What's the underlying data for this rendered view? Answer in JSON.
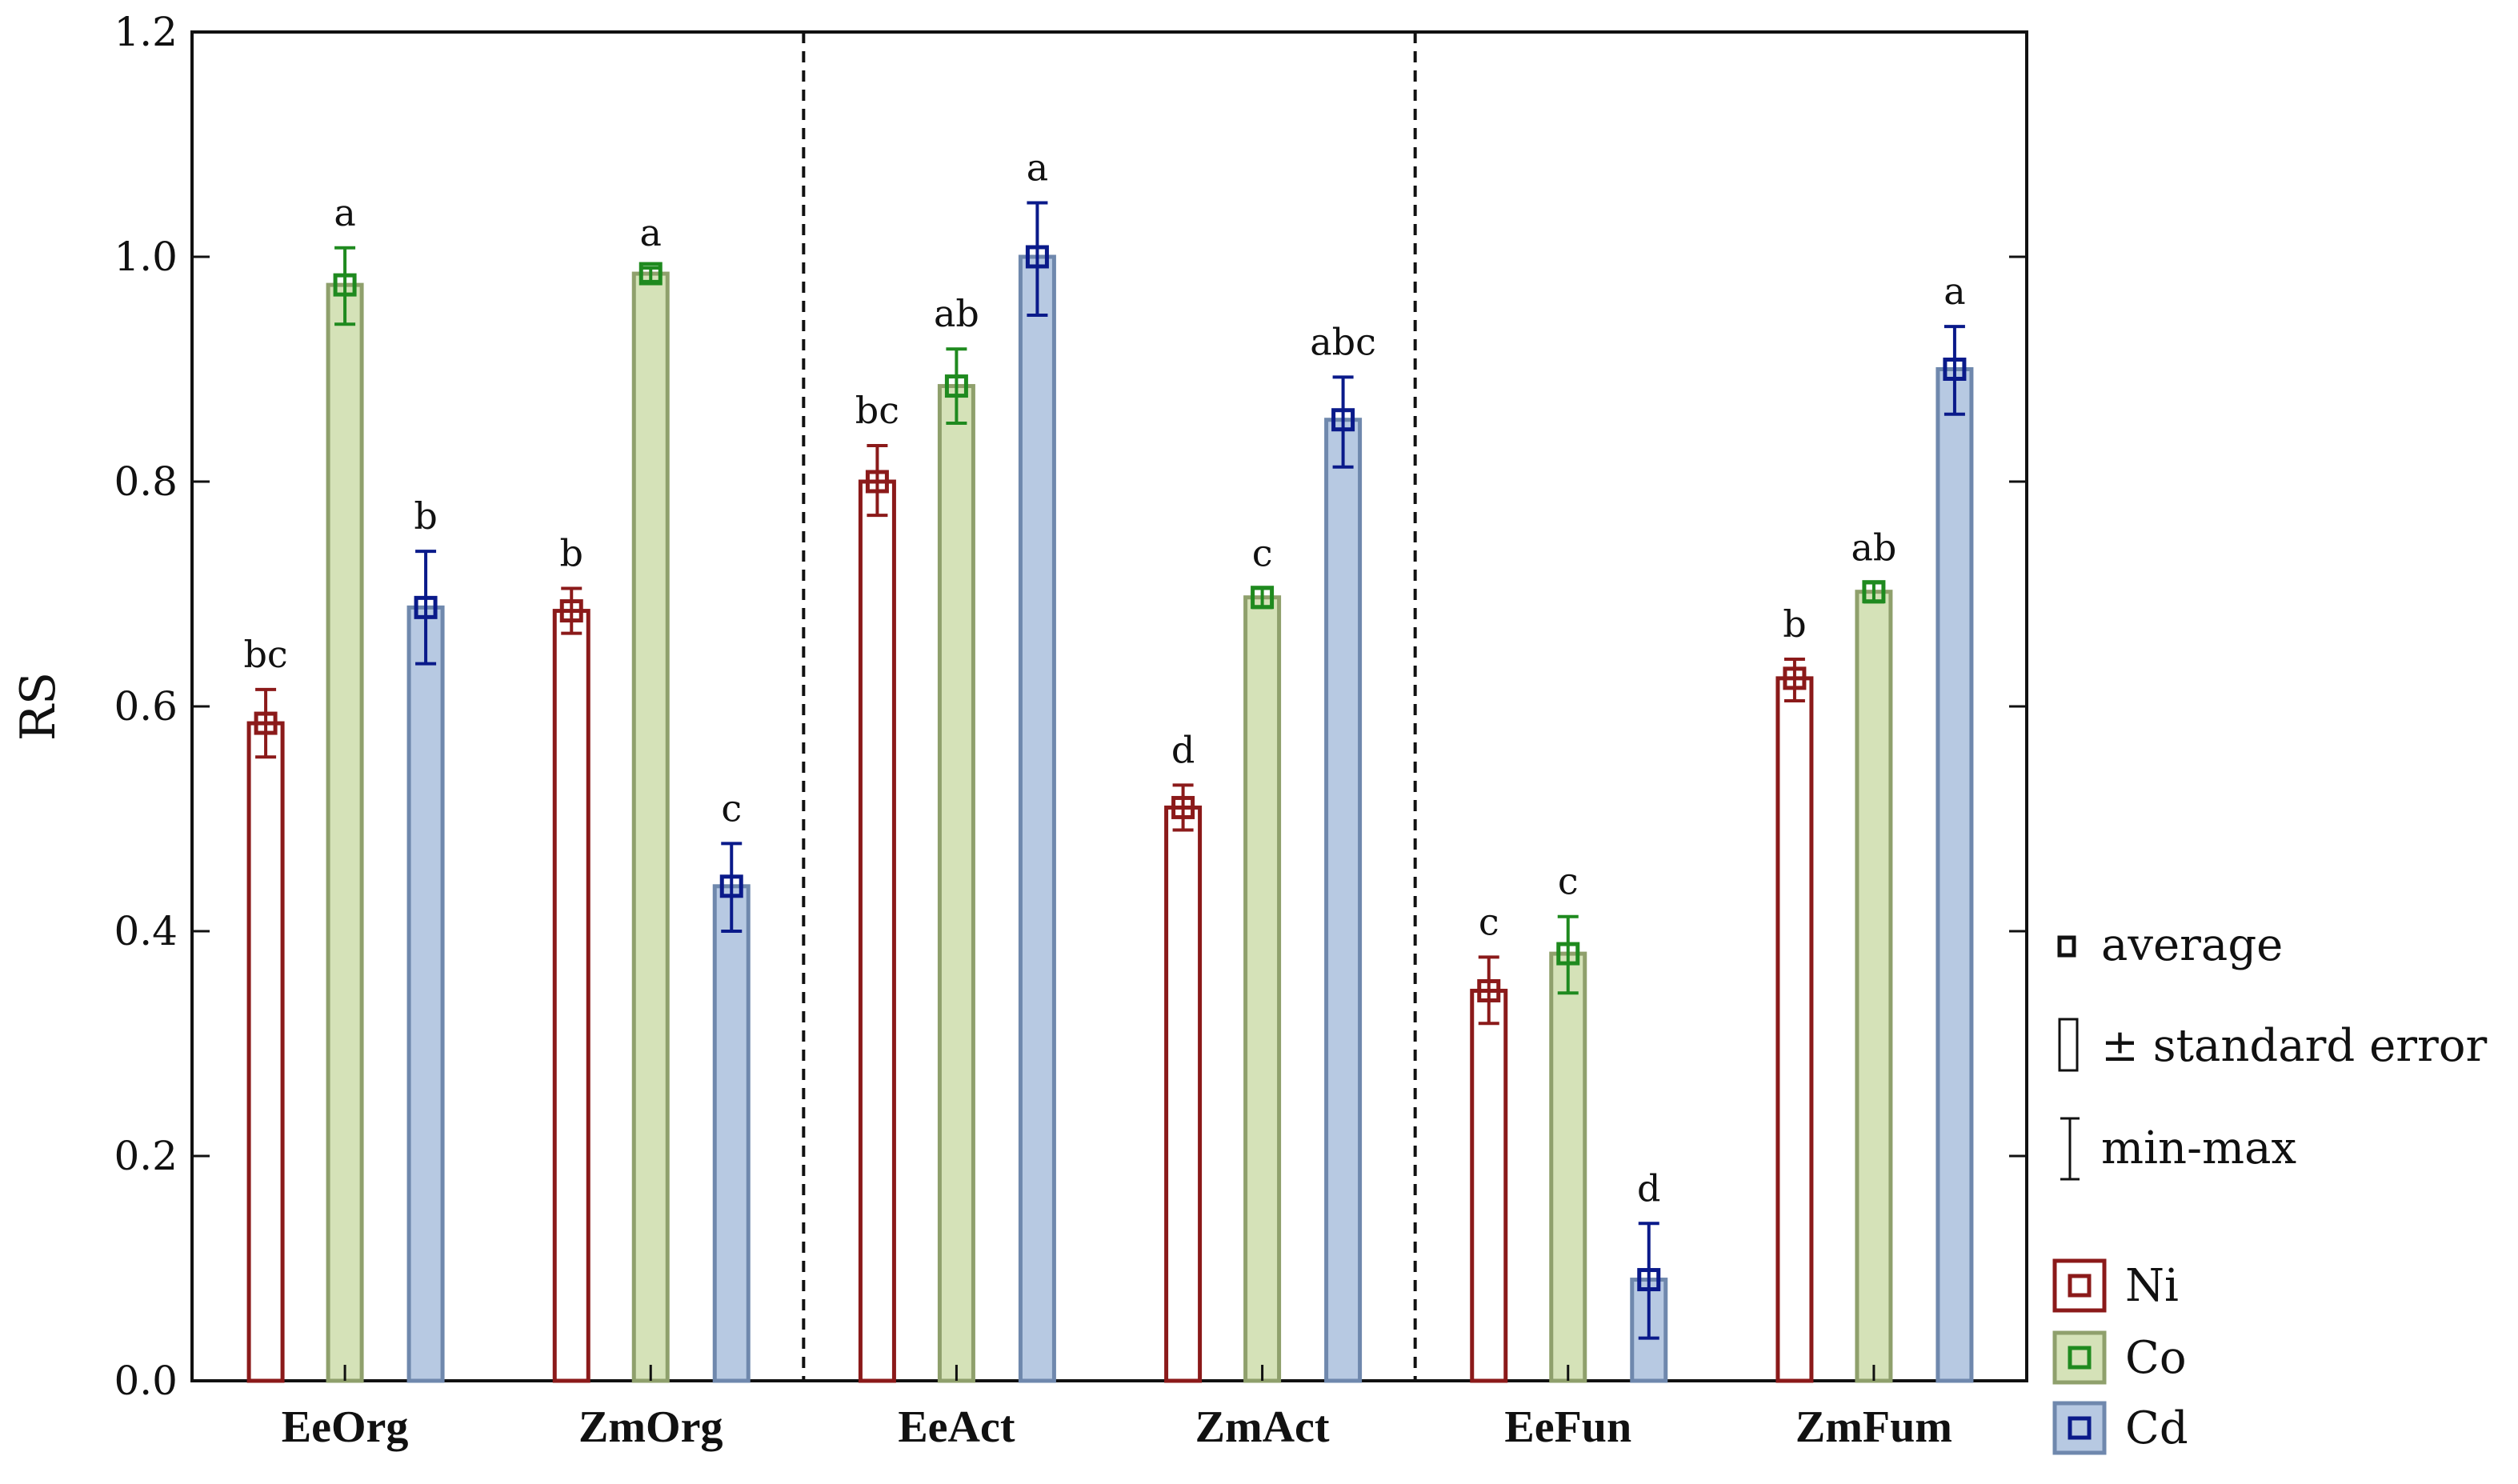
{
  "chart_data": {
    "type": "bar",
    "title": "",
    "xlabel": "",
    "ylabel": "RS",
    "ylim": [
      0,
      1.2
    ],
    "yticks": [
      "0.0",
      "0.2",
      "0.4",
      "0.6",
      "0.8",
      "1.0",
      "1.2"
    ],
    "categories": [
      "EeOrg",
      "ZmOrg",
      "EeAct",
      "ZmAct",
      "EeFun",
      "ZmFum"
    ],
    "group_separators_after": [
      1,
      3
    ],
    "series": [
      {
        "name": "Ni",
        "color": "#8b1a1a",
        "fill": "#ffffff",
        "values": [
          0.585,
          0.685,
          0.8,
          0.51,
          0.347,
          0.625
        ],
        "min": [
          0.555,
          0.665,
          0.77,
          0.49,
          0.318,
          0.605
        ],
        "max": [
          0.615,
          0.705,
          0.832,
          0.53,
          0.377,
          0.642
        ],
        "letters": [
          "bc",
          "b",
          "bc",
          "d",
          "c",
          "b"
        ]
      },
      {
        "name": "Co",
        "color": "#1f8a1f",
        "fill": "#d5e2b8",
        "values": [
          0.975,
          0.985,
          0.885,
          0.697,
          0.38,
          0.702
        ],
        "min": [
          0.94,
          0.978,
          0.852,
          0.688,
          0.345,
          0.693
        ],
        "max": [
          1.008,
          0.99,
          0.918,
          0.705,
          0.413,
          0.71
        ],
        "letters": [
          "a",
          "a",
          "ab",
          "c",
          "c",
          "ab"
        ]
      },
      {
        "name": "Cd",
        "color": "#0a1a8a",
        "fill": "#b7c9e2",
        "values": [
          0.688,
          0.44,
          1.0,
          0.855,
          0.09,
          0.9
        ],
        "min": [
          0.638,
          0.4,
          0.948,
          0.813,
          0.038,
          0.86
        ],
        "max": [
          0.738,
          0.478,
          1.048,
          0.893,
          0.14,
          0.938
        ],
        "letters": [
          "b",
          "c",
          "a",
          "abc",
          "d",
          "a"
        ]
      }
    ],
    "legend_symbols": [
      "average",
      "± standard error",
      "min-max"
    ],
    "legend_series": [
      "Ni",
      "Co",
      "Cd"
    ]
  }
}
